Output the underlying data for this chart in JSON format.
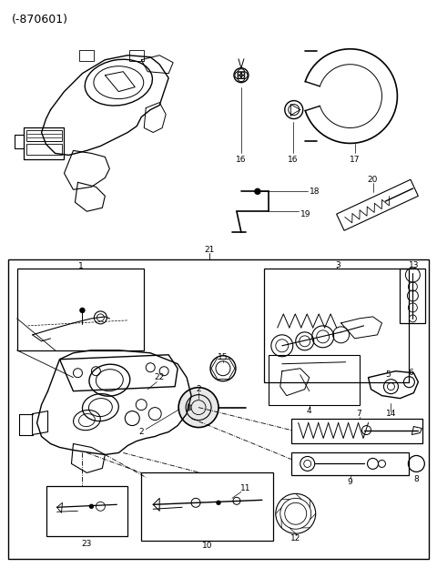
{
  "title": "(-870601)",
  "bg_color": "#ffffff",
  "line_color": "#000000",
  "fig_width": 4.8,
  "fig_height": 6.24,
  "dpi": 100,
  "title_fontsize": 9,
  "label_fontsize": 6.5
}
